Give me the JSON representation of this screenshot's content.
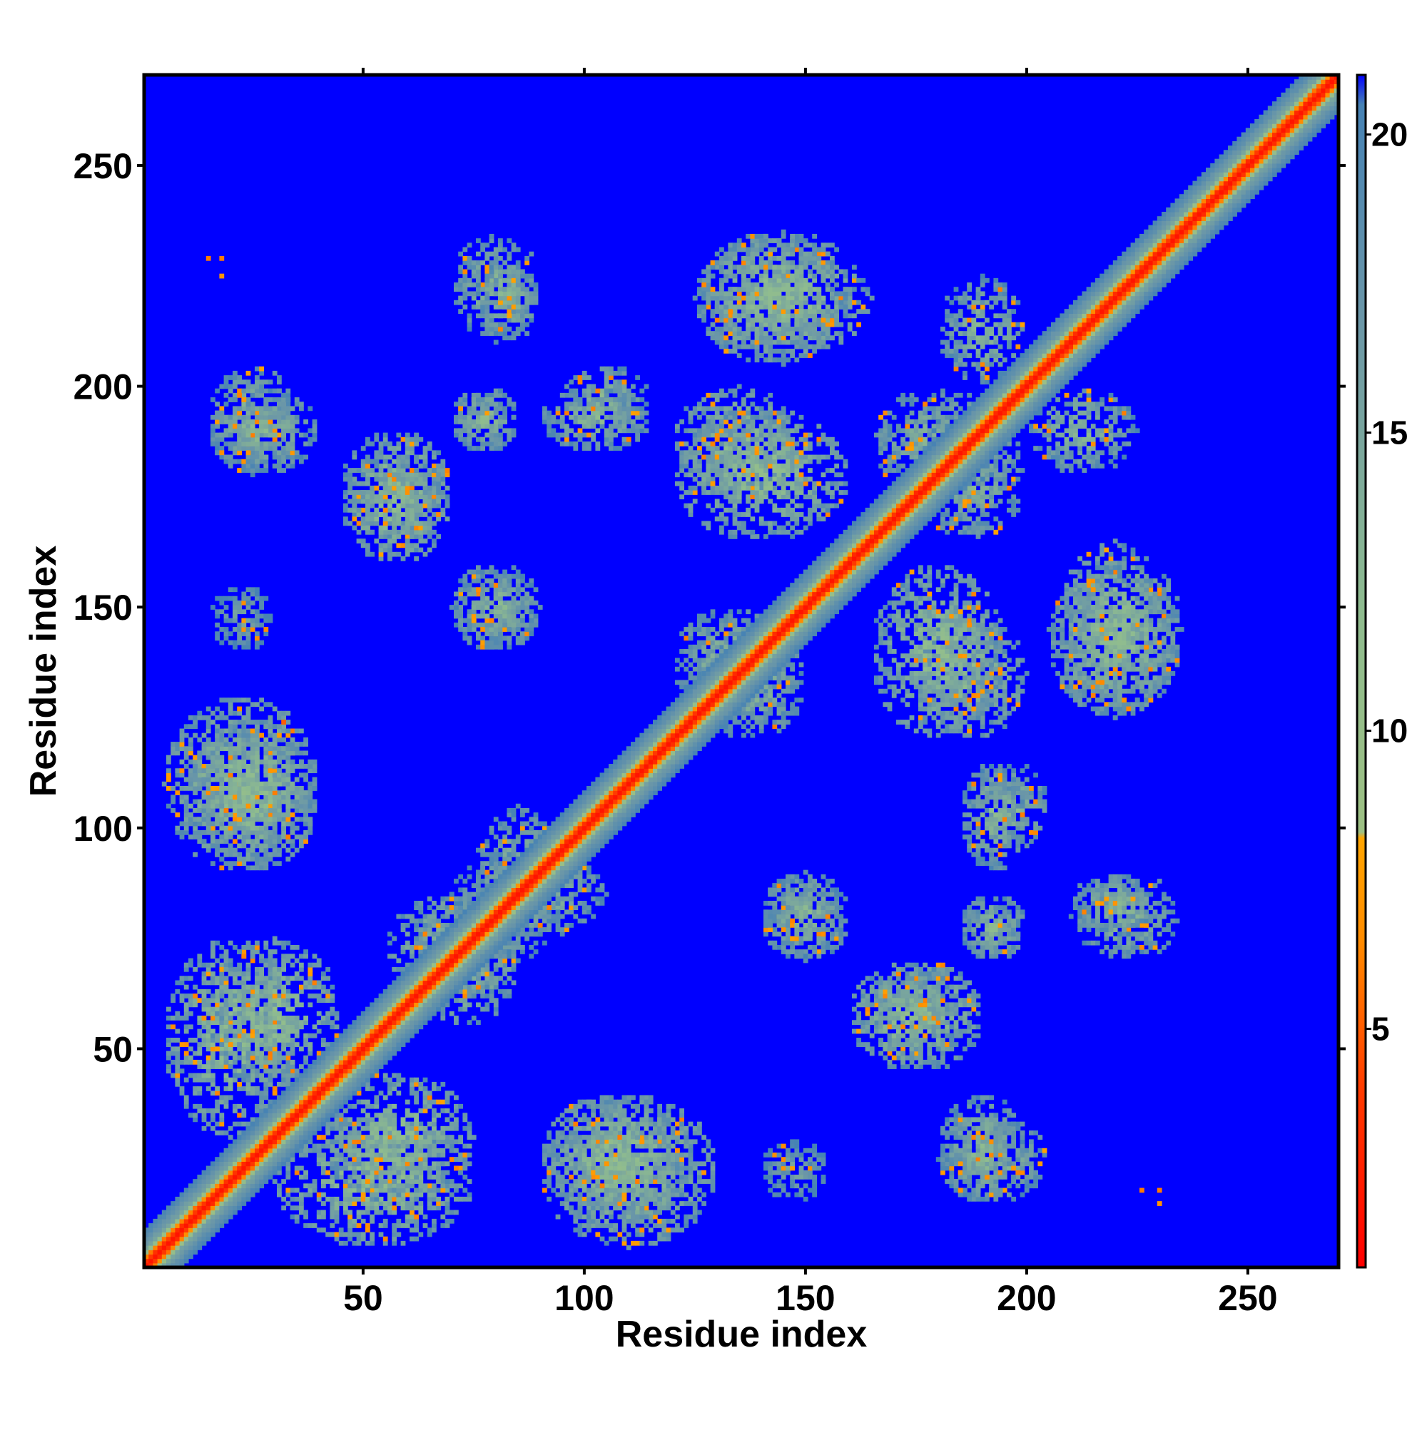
{
  "chart_data": {
    "type": "heatmap",
    "title": "",
    "xlabel": "Residue index",
    "ylabel": "Residue index",
    "xlim": [
      1,
      270
    ],
    "ylim": [
      1,
      270
    ],
    "x_ticks": [
      50,
      100,
      150,
      200,
      250
    ],
    "y_ticks": [
      50,
      100,
      150,
      200,
      250
    ],
    "colorbar": {
      "ticks": [
        5,
        10,
        15,
        20
      ],
      "range": [
        1,
        21
      ],
      "colors": [
        "#ff0000",
        "#ff8c00",
        "#8fbc8f",
        "#4682b4",
        "#0000ff"
      ],
      "scale_stops": [
        {
          "value": 1,
          "color": "#ff0000"
        },
        {
          "value": 4,
          "color": "#ff3c00"
        },
        {
          "value": 6.5,
          "color": "#ff8c00"
        },
        {
          "value": 8.2,
          "color": "#ffa500"
        },
        {
          "value": 8.3,
          "color": "#9dc083"
        },
        {
          "value": 12,
          "color": "#8fbc8f"
        },
        {
          "value": 17,
          "color": "#6a96a8"
        },
        {
          "value": 20.5,
          "color": "#4682b4"
        },
        {
          "value": 21,
          "color": "#0000ff"
        }
      ]
    },
    "background_value": 21,
    "diagonal": {
      "from": 1,
      "to": 270,
      "core_value": 2,
      "halo_width": 8
    },
    "contact_regions": [
      {
        "x": [
          5,
          35
        ],
        "y": [
          30,
          75
        ],
        "value": 12
      },
      {
        "x": [
          5,
          40
        ],
        "y": [
          90,
          130
        ],
        "value": 12
      },
      {
        "x": [
          15,
          35
        ],
        "y": [
          180,
          205
        ],
        "value": 13
      },
      {
        "x": [
          15,
          30
        ],
        "y": [
          140,
          155
        ],
        "value": 15
      },
      {
        "x": [
          40,
          75
        ],
        "y": [
          15,
          45
        ],
        "value": 12
      },
      {
        "x": [
          45,
          70
        ],
        "y": [
          165,
          190
        ],
        "value": 12
      },
      {
        "x": [
          55,
          85
        ],
        "y": [
          60,
          85
        ],
        "value": 12
      },
      {
        "x": [
          70,
          90
        ],
        "y": [
          140,
          160
        ],
        "value": 13
      },
      {
        "x": [
          70,
          85
        ],
        "y": [
          185,
          200
        ],
        "value": 13
      },
      {
        "x": [
          70,
          90
        ],
        "y": [
          210,
          235
        ],
        "value": 13
      },
      {
        "x": [
          75,
          95
        ],
        "y": [
          70,
          105
        ],
        "value": 13
      },
      {
        "x": [
          90,
          125
        ],
        "y": [
          10,
          40
        ],
        "value": 12
      },
      {
        "x": [
          95,
          115
        ],
        "y": [
          190,
          205
        ],
        "value": 13
      },
      {
        "x": [
          120,
          150
        ],
        "y": [
          175,
          200
        ],
        "value": 12
      },
      {
        "x": [
          125,
          165
        ],
        "y": [
          205,
          235
        ],
        "value": 12
      },
      {
        "x": [
          125,
          150
        ],
        "y": [
          120,
          145
        ],
        "value": 13
      },
      {
        "x": [
          140,
          160
        ],
        "y": [
          70,
          90
        ],
        "value": 13
      },
      {
        "x": [
          160,
          185
        ],
        "y": [
          45,
          70
        ],
        "value": 12
      },
      {
        "x": [
          165,
          195
        ],
        "y": [
          120,
          160
        ],
        "value": 12
      },
      {
        "x": [
          165,
          195
        ],
        "y": [
          175,
          200
        ],
        "value": 13
      },
      {
        "x": [
          185,
          200
        ],
        "y": [
          90,
          115
        ],
        "value": 13
      },
      {
        "x": [
          185,
          200
        ],
        "y": [
          70,
          85
        ],
        "value": 13
      },
      {
        "x": [
          180,
          200
        ],
        "y": [
          15,
          40
        ],
        "value": 13
      },
      {
        "x": [
          205,
          235
        ],
        "y": [
          125,
          160
        ],
        "value": 12
      },
      {
        "x": [
          210,
          230
        ],
        "y": [
          75,
          90
        ],
        "value": 13
      },
      {
        "x": [
          180,
          200
        ],
        "y": [
          200,
          225
        ],
        "value": 13
      }
    ],
    "isolated_points": [
      {
        "x": 15,
        "y": 229,
        "value": 6
      },
      {
        "x": 18,
        "y": 229,
        "value": 6
      },
      {
        "x": 18,
        "y": 225,
        "value": 7
      },
      {
        "x": 226,
        "y": 18,
        "value": 6
      },
      {
        "x": 230,
        "y": 18,
        "value": 6
      },
      {
        "x": 230,
        "y": 15,
        "value": 7
      },
      {
        "x": 32,
        "y": 124,
        "value": 5
      }
    ]
  }
}
